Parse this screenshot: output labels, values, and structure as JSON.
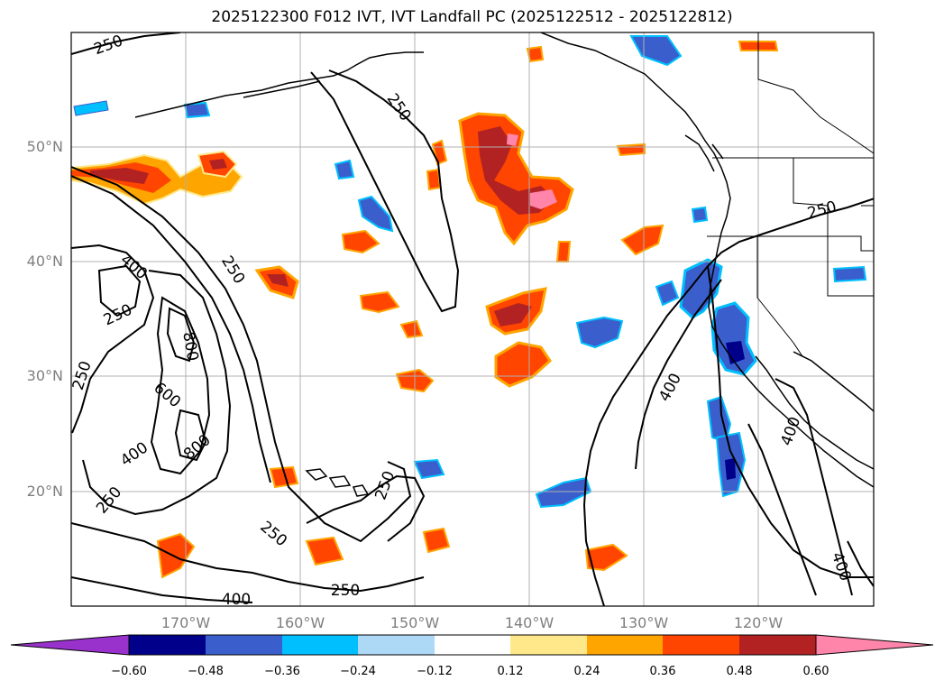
{
  "title": "2025122300 F012 IVT, IVT Landfall PC (2025122512 - 2025122812)",
  "map": {
    "lat_labels": [
      "50°N",
      "40°N",
      "30°N",
      "20°N"
    ],
    "lon_labels": [
      "170°W",
      "160°W",
      "150°W",
      "140°W",
      "130°W",
      "120°W"
    ],
    "contour_labels": [
      "250",
      "250",
      "250",
      "250",
      "250",
      "250",
      "250",
      "250",
      "250",
      "250",
      "400",
      "400",
      "400",
      "400",
      "400",
      "400",
      "600",
      "800",
      "800"
    ]
  },
  "colorbar": {
    "ticks": [
      "−0.60",
      "−0.48",
      "−0.36",
      "−0.24",
      "−0.12",
      "0.12",
      "0.24",
      "0.36",
      "0.48",
      "0.60"
    ],
    "colors": [
      "#9932cc",
      "#00008b",
      "#3a5fcd",
      "#00bfff",
      "#add8f6",
      "#ffffff",
      "#ffe88a",
      "#ffa500",
      "#ff4500",
      "#b22222",
      "#ff85aa"
    ]
  }
}
